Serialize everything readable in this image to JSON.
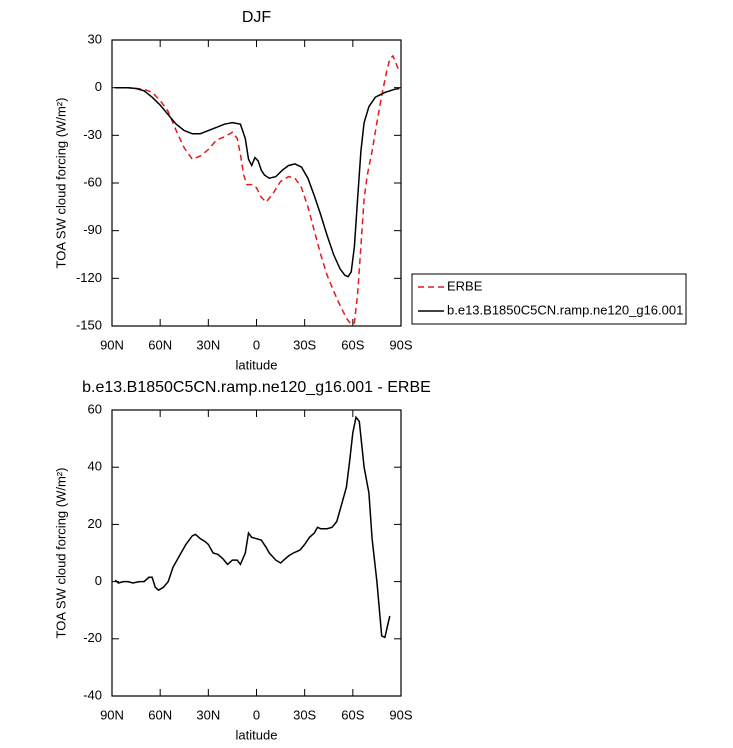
{
  "chart_data": [
    {
      "type": "line",
      "title": "DJF",
      "xlabel": "latitude",
      "ylabel": "TOA SW cloud forcing (W/m²)",
      "xlim": [
        90,
        -90
      ],
      "xticks": [
        {
          "value": 90,
          "label": "90N"
        },
        {
          "value": 60,
          "label": "60N"
        },
        {
          "value": 30,
          "label": "30N"
        },
        0,
        {
          "value": -30,
          "label": "30S"
        },
        {
          "value": -60,
          "label": "60S"
        },
        {
          "value": -90,
          "label": "90S"
        }
      ],
      "ylim": [
        -150,
        30
      ],
      "yticks": [
        30,
        0,
        -30,
        -60,
        -90,
        -120,
        -150
      ],
      "legend": "right",
      "series": [
        {
          "name": "ERBE",
          "color": "#e41a1c",
          "dashed": true,
          "x": [
            88,
            80,
            70,
            65,
            60,
            55,
            50,
            45,
            40,
            35,
            30,
            25,
            20,
            15,
            12,
            10,
            8,
            6,
            3,
            0,
            -3,
            -6,
            -10,
            -15,
            -20,
            -24,
            -28,
            -32,
            -36,
            -40,
            -44,
            -48,
            -52,
            -56,
            -59,
            -61,
            -63,
            -65,
            -67,
            -69,
            -72,
            -75,
            -78,
            -81,
            -83,
            -85,
            -87,
            -89
          ],
          "values": [
            0,
            0,
            -1,
            -3,
            -8,
            -15,
            -27,
            -38,
            -45,
            -43,
            -39,
            -33,
            -31,
            -28,
            -32,
            -42,
            -55,
            -61,
            -61,
            -63,
            -69,
            -72,
            -67,
            -59,
            -56,
            -57,
            -63,
            -75,
            -90,
            -105,
            -118,
            -128,
            -137,
            -145,
            -149,
            -148,
            -130,
            -100,
            -70,
            -55,
            -40,
            -22,
            -5,
            10,
            18,
            20,
            15,
            10
          ]
        },
        {
          "name": "b.e13.B1850C5CN.ramp.ne120_g16.001",
          "color": "#000000",
          "dashed": false,
          "x": [
            88,
            80,
            75,
            70,
            65,
            60,
            55,
            50,
            45,
            40,
            35,
            30,
            25,
            20,
            15,
            10,
            7,
            5,
            3,
            1,
            -1,
            -3,
            -5,
            -8,
            -12,
            -16,
            -20,
            -24,
            -28,
            -32,
            -36,
            -40,
            -44,
            -48,
            -52,
            -55,
            -57,
            -59,
            -61,
            -63,
            -65,
            -67,
            -70,
            -74,
            -80,
            -86,
            -89
          ],
          "values": [
            0,
            0,
            -0.5,
            -2,
            -6,
            -11,
            -17,
            -23,
            -27,
            -29,
            -29,
            -27,
            -25,
            -23,
            -22,
            -23,
            -32,
            -45,
            -49,
            -44,
            -46,
            -52,
            -55,
            -57,
            -56,
            -52,
            -49,
            -48,
            -50,
            -57,
            -68,
            -80,
            -93,
            -105,
            -114,
            -118,
            -119,
            -116,
            -100,
            -70,
            -40,
            -22,
            -12,
            -6,
            -3,
            -1,
            -0.5
          ]
        }
      ]
    },
    {
      "type": "line",
      "title": "b.e13.B1850C5CN.ramp.ne120_g16.001 - ERBE",
      "xlabel": "latitude",
      "ylabel": "TOA SW cloud forcing (W/m²)",
      "xlim": [
        90,
        -90
      ],
      "xticks": [
        {
          "value": 90,
          "label": "90N"
        },
        {
          "value": 60,
          "label": "60N"
        },
        {
          "value": 30,
          "label": "30N"
        },
        0,
        {
          "value": -30,
          "label": "30S"
        },
        {
          "value": -60,
          "label": "60S"
        },
        {
          "value": -90,
          "label": "90S"
        }
      ],
      "ylim": [
        -40,
        60
      ],
      "yticks": [
        60,
        40,
        20,
        0,
        -20,
        -40
      ],
      "color": "#000000",
      "x": [
        88,
        86,
        83,
        80,
        77,
        73,
        70,
        67,
        65,
        63,
        61,
        58,
        55,
        52,
        48,
        44,
        40,
        38,
        35,
        32,
        30,
        27,
        24,
        21,
        18,
        15,
        12,
        10,
        7,
        5,
        3,
        0,
        -3,
        -6,
        -8,
        -12,
        -15,
        -17,
        -20,
        -23,
        -27,
        -30,
        -33,
        -36,
        -38,
        -40,
        -44,
        -47,
        -50,
        -53,
        -56,
        -58,
        -60,
        -62,
        -64,
        -67,
        -70,
        -72,
        -75,
        -78,
        -80,
        -83
      ],
      "values": [
        0.5,
        -0.5,
        0,
        0,
        -0.5,
        0,
        0,
        1.5,
        1.5,
        -2,
        -3,
        -2,
        0,
        5,
        9,
        13,
        16,
        16.5,
        15,
        14,
        13,
        10,
        9.5,
        8,
        6,
        7.5,
        7.5,
        6,
        10,
        17,
        15.5,
        15,
        14.5,
        12,
        10,
        7.5,
        6.5,
        7.5,
        9,
        10,
        11,
        13,
        15.5,
        17,
        19,
        18.5,
        18.5,
        19,
        21,
        27,
        33,
        42,
        52,
        57.5,
        56,
        40,
        31,
        15,
        0,
        -19,
        -19.5,
        -12
      ]
    }
  ]
}
